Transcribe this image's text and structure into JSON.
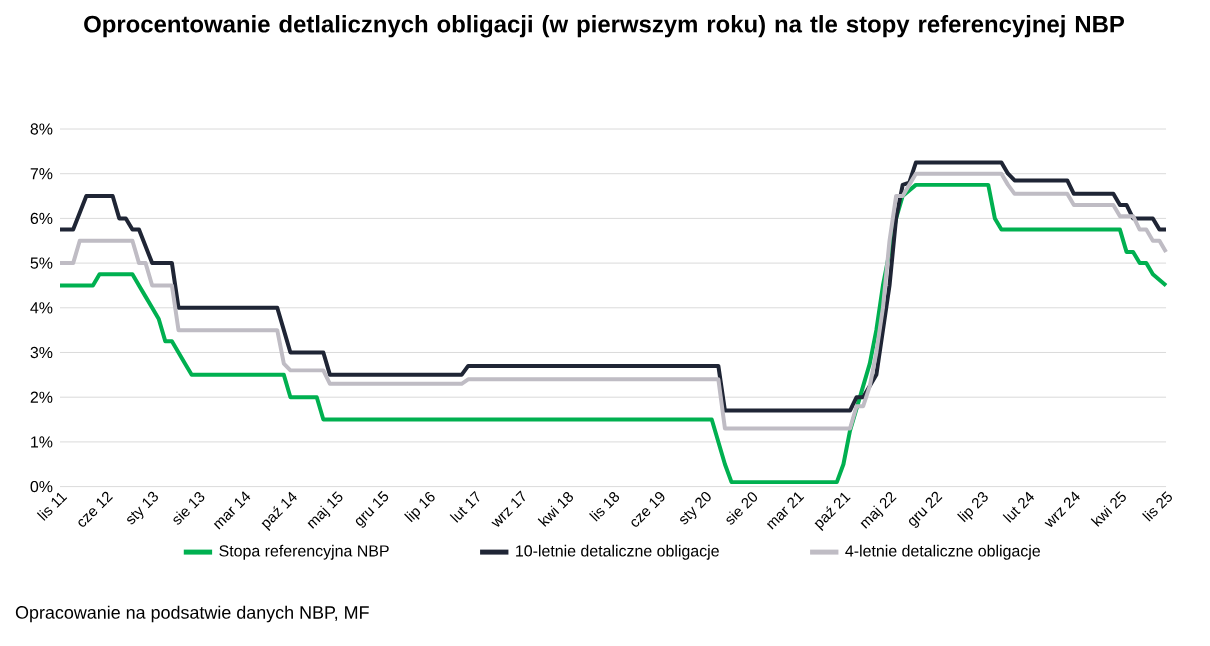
{
  "chart_data": {
    "type": "line",
    "title": "Oprocentowanie detlalicznych obligacji (w pierwszym roku) na tle stopy referencyjnej NBP",
    "annotations": [
      "Opracowanie na podsatwie danych NBP, MF"
    ],
    "xlim": [
      "2011-11",
      "2025-11"
    ],
    "xticks": [
      {
        "value": "2011-11",
        "label": "lis 11"
      },
      {
        "value": "2012-06",
        "label": "cze 12"
      },
      {
        "value": "2013-01",
        "label": "sty 13"
      },
      {
        "value": "2013-08",
        "label": "sie 13"
      },
      {
        "value": "2014-03",
        "label": "mar 14"
      },
      {
        "value": "2014-10",
        "label": "paź 14"
      },
      {
        "value": "2015-05",
        "label": "maj 15"
      },
      {
        "value": "2015-12",
        "label": "gru 15"
      },
      {
        "value": "2016-07",
        "label": "lip 16"
      },
      {
        "value": "2017-02",
        "label": "lut 17"
      },
      {
        "value": "2017-09",
        "label": "wrz 17"
      },
      {
        "value": "2018-04",
        "label": "kwi 18"
      },
      {
        "value": "2018-11",
        "label": "lis 18"
      },
      {
        "value": "2019-06",
        "label": "cze 19"
      },
      {
        "value": "2020-01",
        "label": "sty 20"
      },
      {
        "value": "2020-08",
        "label": "sie 20"
      },
      {
        "value": "2021-03",
        "label": "mar 21"
      },
      {
        "value": "2021-10",
        "label": "paź 21"
      },
      {
        "value": "2022-05",
        "label": "maj 22"
      },
      {
        "value": "2022-12",
        "label": "gru 22"
      },
      {
        "value": "2023-07",
        "label": "lip 23"
      },
      {
        "value": "2024-02",
        "label": "lut 24"
      },
      {
        "value": "2024-09",
        "label": "wrz 24"
      },
      {
        "value": "2025-04",
        "label": "kwi 25"
      },
      {
        "value": "2025-11",
        "label": "lis 25"
      }
    ],
    "ylim": [
      0,
      8
    ],
    "yticks": [
      {
        "value": 0,
        "label": "0%"
      },
      {
        "value": 1,
        "label": "1%"
      },
      {
        "value": 2,
        "label": "2%"
      },
      {
        "value": 3,
        "label": "3%"
      },
      {
        "value": 4,
        "label": "4%"
      },
      {
        "value": 5,
        "label": "5%"
      },
      {
        "value": 6,
        "label": "6%"
      },
      {
        "value": 7,
        "label": "7%"
      },
      {
        "value": 8,
        "label": "8%"
      }
    ],
    "grid": "y",
    "legend": "bottom",
    "series": [
      {
        "name": "Stopa referencyjna NBP",
        "color": "#00b050",
        "x": [
          "2011-11",
          "2012-04",
          "2012-05",
          "2012-10",
          "2012-11",
          "2012-12",
          "2013-01",
          "2013-02",
          "2013-03",
          "2013-04",
          "2013-05",
          "2013-06",
          "2013-07",
          "2014-09",
          "2014-10",
          "2015-02",
          "2015-03",
          "2020-02",
          "2020-03",
          "2020-04",
          "2020-05",
          "2021-09",
          "2021-10",
          "2021-11",
          "2021-12",
          "2022-01",
          "2022-02",
          "2022-03",
          "2022-04",
          "2022-05",
          "2022-06",
          "2022-07",
          "2022-09",
          "2023-08",
          "2023-09",
          "2023-10",
          "2025-04",
          "2025-05",
          "2025-06",
          "2025-07",
          "2025-08",
          "2025-09",
          "2025-11"
        ],
        "values": [
          4.5,
          4.5,
          4.75,
          4.75,
          4.5,
          4.25,
          4.0,
          3.75,
          3.25,
          3.25,
          3.0,
          2.75,
          2.5,
          2.5,
          2.0,
          2.0,
          1.5,
          1.5,
          1.0,
          0.5,
          0.1,
          0.1,
          0.5,
          1.25,
          1.75,
          2.25,
          2.75,
          3.5,
          4.5,
          5.25,
          6.0,
          6.5,
          6.75,
          6.75,
          6.0,
          5.75,
          5.75,
          5.25,
          5.25,
          5.0,
          5.0,
          4.75,
          4.5
        ]
      },
      {
        "name": "10-letnie detaliczne obligacje",
        "color": "#1f2535",
        "x": [
          "2011-11",
          "2012-01",
          "2012-03",
          "2012-07",
          "2012-08",
          "2012-09",
          "2012-10",
          "2012-11",
          "2013-01",
          "2013-04",
          "2013-05",
          "2014-08",
          "2014-09",
          "2014-10",
          "2015-03",
          "2015-04",
          "2016-12",
          "2017-01",
          "2020-03",
          "2020-04",
          "2021-11",
          "2021-12",
          "2022-01",
          "2022-02",
          "2022-03",
          "2022-04",
          "2022-05",
          "2022-06",
          "2022-07",
          "2022-08",
          "2022-09",
          "2023-10",
          "2023-11",
          "2023-12",
          "2024-08",
          "2024-09",
          "2025-03",
          "2025-04",
          "2025-05",
          "2025-06",
          "2025-09",
          "2025-10",
          "2025-11"
        ],
        "values": [
          5.75,
          5.75,
          6.5,
          6.5,
          6.0,
          6.0,
          5.75,
          5.75,
          5.0,
          5.0,
          4.0,
          4.0,
          3.5,
          3.0,
          3.0,
          2.5,
          2.5,
          2.7,
          2.7,
          1.7,
          1.7,
          2.0,
          2.0,
          2.25,
          2.5,
          3.5,
          4.5,
          6.0,
          6.75,
          6.8,
          7.25,
          7.25,
          7.0,
          6.85,
          6.85,
          6.55,
          6.55,
          6.3,
          6.3,
          6.0,
          6.0,
          5.75,
          5.75
        ]
      },
      {
        "name": "4-letnie detaliczne obligacje",
        "color": "#bfbcc4",
        "x": [
          "2011-11",
          "2012-01",
          "2012-02",
          "2012-10",
          "2012-11",
          "2012-12",
          "2013-01",
          "2013-04",
          "2013-05",
          "2014-08",
          "2014-09",
          "2014-10",
          "2015-03",
          "2015-04",
          "2016-12",
          "2017-01",
          "2020-03",
          "2020-04",
          "2021-11",
          "2021-12",
          "2022-01",
          "2022-02",
          "2022-03",
          "2022-04",
          "2022-05",
          "2022-06",
          "2022-07",
          "2022-08",
          "2022-09",
          "2023-10",
          "2023-11",
          "2023-12",
          "2024-08",
          "2024-09",
          "2025-03",
          "2025-04",
          "2025-06",
          "2025-07",
          "2025-08",
          "2025-09",
          "2025-10",
          "2025-11"
        ],
        "values": [
          5.0,
          5.0,
          5.5,
          5.5,
          5.0,
          5.0,
          4.5,
          4.5,
          3.5,
          3.5,
          2.75,
          2.6,
          2.6,
          2.3,
          2.3,
          2.4,
          2.4,
          1.3,
          1.3,
          1.8,
          1.8,
          2.25,
          3.0,
          4.0,
          5.5,
          6.5,
          6.5,
          6.75,
          7.0,
          7.0,
          6.75,
          6.55,
          6.55,
          6.3,
          6.3,
          6.05,
          6.05,
          5.75,
          5.75,
          5.5,
          5.5,
          5.25
        ]
      }
    ]
  }
}
